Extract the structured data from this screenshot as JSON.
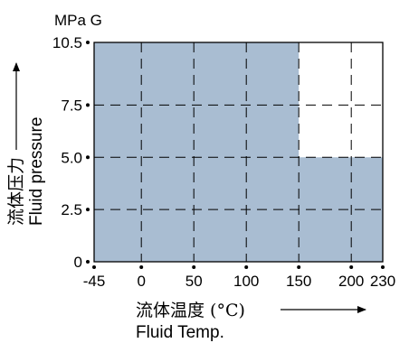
{
  "chart_data": {
    "type": "area",
    "title": "",
    "unit_label": "MPa G",
    "xlabel_cn": "流体温度 (°C)",
    "xlabel_en": "Fluid Temp.",
    "ylabel_cn": "流体压力",
    "ylabel_en": "Fluid pressure",
    "x_ticks": [
      "-45",
      "0",
      "50",
      "100",
      "150",
      "200",
      "230"
    ],
    "y_ticks": [
      "0",
      "2.5",
      "5.0",
      "7.5",
      "10.5"
    ],
    "x_tick_values": [
      -45,
      0,
      50,
      100,
      150,
      200,
      230
    ],
    "y_tick_values": [
      0,
      2.5,
      5.0,
      7.5,
      10.5
    ],
    "xlim": [
      -45,
      230
    ],
    "ylim": [
      0,
      10.5
    ],
    "grid": true,
    "grid_style": "dashed",
    "region": {
      "name": "",
      "color": "#a9bdd2",
      "points": [
        {
          "x": -45,
          "y": 0
        },
        {
          "x": -45,
          "y": 10.5
        },
        {
          "x": 150,
          "y": 10.5
        },
        {
          "x": 150,
          "y": 5.0
        },
        {
          "x": 230,
          "y": 5.0
        },
        {
          "x": 230,
          "y": 0
        }
      ]
    }
  }
}
